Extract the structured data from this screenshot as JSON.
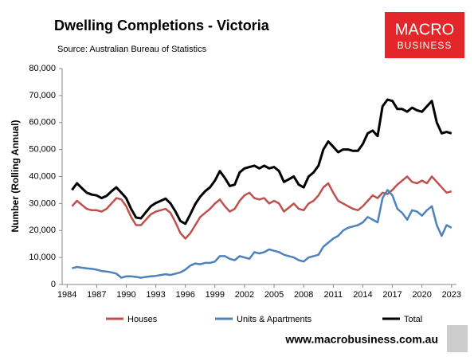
{
  "chart_data": {
    "type": "line",
    "title": "Dwelling Completions - Victoria",
    "subtitle": "Source: Australian Bureau of Statistics",
    "y_label": "Number (Rolling Annual)",
    "x": [
      1984.5,
      1985,
      1985.5,
      1986,
      1986.5,
      1987,
      1987.5,
      1988,
      1988.5,
      1989,
      1989.5,
      1990,
      1990.5,
      1991,
      1991.5,
      1992,
      1992.5,
      1993,
      1993.5,
      1994,
      1994.5,
      1995,
      1995.5,
      1996,
      1996.5,
      1997,
      1997.5,
      1998,
      1998.5,
      1999,
      1999.5,
      2000,
      2000.5,
      2001,
      2001.5,
      2002,
      2002.5,
      2003,
      2003.5,
      2004,
      2004.5,
      2005,
      2005.5,
      2006,
      2006.5,
      2007,
      2007.5,
      2008,
      2008.5,
      2009,
      2009.5,
      2010,
      2010.5,
      2011,
      2011.5,
      2012,
      2012.5,
      2013,
      2013.5,
      2014,
      2014.5,
      2015,
      2015.5,
      2016,
      2016.5,
      2017,
      2017.5,
      2018,
      2018.5,
      2019,
      2019.5,
      2020,
      2020.5,
      2021,
      2021.5,
      2022,
      2022.5,
      2023
    ],
    "series": [
      {
        "name": "Houses",
        "color": "#c0504d",
        "values": [
          29000,
          31000,
          29500,
          28000,
          27500,
          27500,
          27000,
          28000,
          30000,
          32000,
          31500,
          29000,
          25000,
          22000,
          22000,
          24000,
          26000,
          27000,
          27500,
          28000,
          26500,
          23000,
          19000,
          17000,
          19000,
          22000,
          25000,
          26500,
          28000,
          30000,
          31500,
          29000,
          27000,
          28000,
          31000,
          33000,
          34000,
          32000,
          31500,
          32000,
          30000,
          31000,
          30000,
          27000,
          28500,
          30000,
          28000,
          27500,
          30000,
          31000,
          33000,
          36000,
          37500,
          34000,
          31000,
          30000,
          29000,
          28000,
          27500,
          29000,
          31000,
          33000,
          32000,
          34000,
          33500,
          35000,
          37000,
          38500,
          40000,
          38000,
          37500,
          38500,
          37500,
          40000,
          38000,
          36000,
          34000,
          34500
        ]
      },
      {
        "name": "Units & Apartments",
        "color": "#4f81bd",
        "values": [
          6000,
          6500,
          6200,
          6000,
          5800,
          5500,
          5000,
          4800,
          4500,
          4000,
          2500,
          3000,
          3000,
          2800,
          2500,
          2800,
          3000,
          3200,
          3500,
          3800,
          3500,
          4000,
          4500,
          5500,
          7000,
          7800,
          7500,
          8000,
          8000,
          8500,
          10500,
          10500,
          9500,
          9000,
          10500,
          10000,
          9500,
          12000,
          11500,
          12000,
          13000,
          12500,
          12000,
          11000,
          10500,
          10000,
          9000,
          8500,
          10000,
          10500,
          11000,
          14000,
          15500,
          17000,
          18000,
          20000,
          21000,
          21500,
          22000,
          23000,
          25000,
          24000,
          23000,
          32000,
          35000,
          33000,
          28000,
          26500,
          24000,
          27500,
          27000,
          25500,
          27500,
          29000,
          22000,
          18000,
          22000,
          21000
        ]
      },
      {
        "name": "Total",
        "color": "#000000",
        "values": [
          35000,
          37500,
          35700,
          34000,
          33300,
          33000,
          32000,
          32800,
          34500,
          36000,
          34000,
          32000,
          28000,
          24800,
          24500,
          26800,
          29000,
          30200,
          31000,
          31800,
          30000,
          27000,
          23500,
          22500,
          26000,
          29800,
          32500,
          34500,
          36000,
          38500,
          42000,
          39500,
          36500,
          37000,
          41500,
          43000,
          43500,
          44000,
          43000,
          44000,
          43000,
          43500,
          42000,
          38000,
          39000,
          40000,
          37000,
          36000,
          40000,
          41500,
          44000,
          50000,
          53000,
          51000,
          49000,
          50000,
          50000,
          49500,
          49500,
          52000,
          56000,
          57000,
          55000,
          66000,
          68500,
          68000,
          65000,
          65000,
          64000,
          65500,
          64500,
          64000,
          66000,
          68000,
          60000,
          56000,
          56500,
          56000
        ]
      }
    ],
    "xlim": [
      1983.5,
      2023.5
    ],
    "xticks": [
      1984,
      1987,
      1990,
      1993,
      1996,
      1999,
      2002,
      2005,
      2008,
      2011,
      2014,
      2017,
      2020,
      2023
    ],
    "ylim": [
      0,
      80000
    ],
    "yticks": [
      0,
      {
        "value": 10000,
        "label": "10,000"
      },
      {
        "value": 20000,
        "label": "20,000"
      },
      {
        "value": 30000,
        "label": "30,000"
      },
      {
        "value": 40000,
        "label": "40,000"
      },
      {
        "value": 50000,
        "label": "50,000"
      },
      {
        "value": 60000,
        "label": "60,000"
      },
      {
        "value": 70000,
        "label": "70,000"
      },
      {
        "value": 80000,
        "label": "80,000"
      }
    ],
    "grid": false,
    "legend": "bottom"
  },
  "logo": [
    "MACRO",
    "BUSINESS"
  ],
  "footer": "www.macrobusiness.com.au"
}
